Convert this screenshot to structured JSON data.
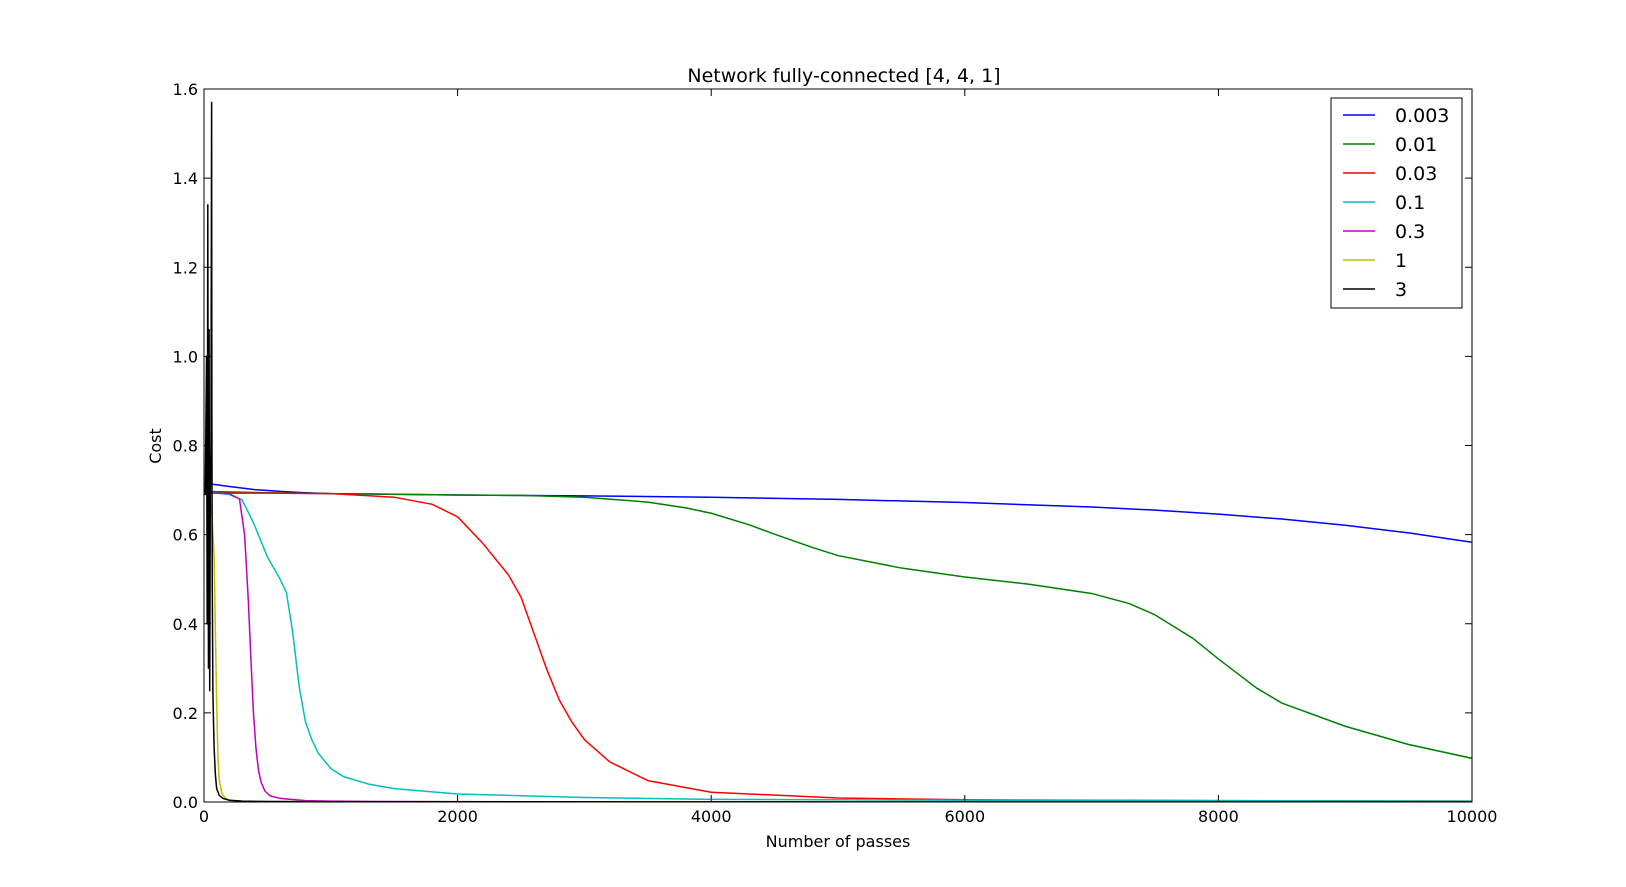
{
  "chart_data": {
    "type": "line",
    "title": "Network fully-connected [4, 4, 1]",
    "xlabel": "Number of passes",
    "ylabel": "Cost",
    "xlim": [
      0,
      10000
    ],
    "ylim": [
      0.0,
      1.6
    ],
    "xticks": [
      0,
      2000,
      4000,
      6000,
      8000,
      10000
    ],
    "yticks": [
      0.0,
      0.2,
      0.4,
      0.6,
      0.8,
      1.0,
      1.2,
      1.4,
      1.6
    ],
    "ytick_labels": [
      "0.0",
      "0.2",
      "0.4",
      "0.6",
      "0.8",
      "1.0",
      "1.2",
      "1.4",
      "1.6"
    ],
    "grid": false,
    "legend_position": "top-right",
    "series": [
      {
        "name": "0.003",
        "color": "#0000ff",
        "x": [
          0,
          100,
          200,
          400,
          600,
          800,
          1000,
          2000,
          3000,
          4000,
          5000,
          6000,
          7000,
          7500,
          8000,
          8500,
          9000,
          9500,
          10000
        ],
        "y": [
          0.715,
          0.712,
          0.708,
          0.701,
          0.697,
          0.694,
          0.692,
          0.689,
          0.687,
          0.684,
          0.679,
          0.672,
          0.662,
          0.655,
          0.646,
          0.635,
          0.621,
          0.604,
          0.583
        ]
      },
      {
        "name": "0.01",
        "color": "#008000",
        "x": [
          0,
          500,
          1000,
          2000,
          2500,
          3000,
          3500,
          3800,
          4000,
          4300,
          4500,
          4800,
          5000,
          5500,
          6000,
          6500,
          7000,
          7300,
          7500,
          7800,
          8000,
          8300,
          8500,
          9000,
          9500,
          10000
        ],
        "y": [
          0.697,
          0.694,
          0.692,
          0.689,
          0.688,
          0.684,
          0.673,
          0.66,
          0.648,
          0.622,
          0.601,
          0.571,
          0.553,
          0.525,
          0.505,
          0.489,
          0.468,
          0.445,
          0.42,
          0.367,
          0.321,
          0.256,
          0.222,
          0.17,
          0.129,
          0.098
        ]
      },
      {
        "name": "0.03",
        "color": "#ff0000",
        "x": [
          0,
          200,
          500,
          1000,
          1500,
          1800,
          2000,
          2200,
          2400,
          2500,
          2600,
          2700,
          2800,
          2900,
          3000,
          3200,
          3500,
          4000,
          5000,
          6000,
          8000,
          10000
        ],
        "y": [
          0.693,
          0.693,
          0.693,
          0.692,
          0.684,
          0.668,
          0.64,
          0.58,
          0.51,
          0.46,
          0.38,
          0.3,
          0.23,
          0.18,
          0.14,
          0.09,
          0.048,
          0.022,
          0.009,
          0.005,
          0.003,
          0.002
        ]
      },
      {
        "name": "0.1",
        "color": "#00bfbf",
        "x": [
          0,
          100,
          200,
          300,
          350,
          400,
          450,
          500,
          550,
          600,
          650,
          700,
          750,
          800,
          850,
          900,
          1000,
          1100,
          1300,
          1500,
          2000,
          3000,
          4000,
          6000,
          10000
        ],
        "y": [
          0.693,
          0.693,
          0.69,
          0.678,
          0.65,
          0.62,
          0.585,
          0.55,
          0.525,
          0.5,
          0.47,
          0.38,
          0.26,
          0.18,
          0.14,
          0.11,
          0.075,
          0.057,
          0.04,
          0.03,
          0.018,
          0.01,
          0.006,
          0.004,
          0.002
        ]
      },
      {
        "name": "0.3",
        "color": "#bf00bf",
        "x": [
          0,
          100,
          200,
          280,
          320,
          350,
          370,
          390,
          410,
          430,
          450,
          480,
          520,
          600,
          800,
          1000,
          1500,
          3000,
          10000
        ],
        "y": [
          0.693,
          0.693,
          0.692,
          0.68,
          0.6,
          0.45,
          0.32,
          0.2,
          0.12,
          0.07,
          0.045,
          0.025,
          0.014,
          0.008,
          0.003,
          0.002,
          0.001,
          0.0005,
          0.0002
        ]
      },
      {
        "name": "1",
        "color": "#bfbf00",
        "x": [
          0,
          30,
          60,
          80,
          90,
          100,
          110,
          120,
          140,
          170,
          200,
          300,
          500,
          1000,
          10000
        ],
        "y": [
          0.7,
          0.69,
          0.66,
          0.55,
          0.38,
          0.22,
          0.1,
          0.05,
          0.02,
          0.008,
          0.004,
          0.002,
          0.001,
          0.0005,
          0.0002
        ]
      },
      {
        "name": "3",
        "color": "#000000",
        "x": [
          0,
          10,
          20,
          25,
          30,
          35,
          40,
          45,
          50,
          55,
          60,
          62,
          65,
          70,
          75,
          80,
          90,
          100,
          120,
          150,
          200,
          300,
          500,
          1000,
          10000
        ],
        "y": [
          0.7,
          0.69,
          1.0,
          0.4,
          1.34,
          0.3,
          1.06,
          0.25,
          0.7,
          0.8,
          1.57,
          0.9,
          0.5,
          0.25,
          0.18,
          0.12,
          0.06,
          0.03,
          0.015,
          0.008,
          0.004,
          0.002,
          0.001,
          0.0005,
          0.0002
        ]
      }
    ]
  }
}
